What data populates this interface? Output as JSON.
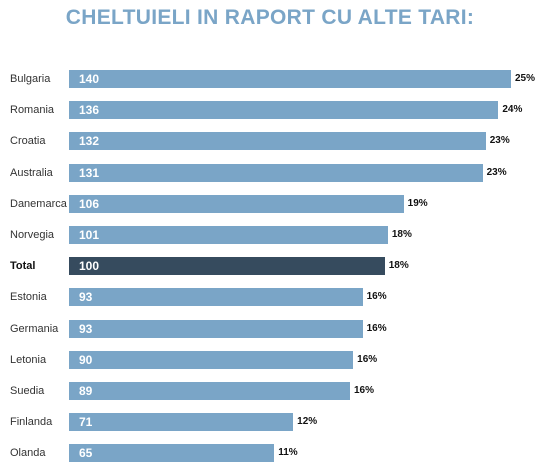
{
  "chart_data": {
    "type": "bar",
    "orientation": "horizontal",
    "title": "CHELTUIELI IN RAPORT CU ALTE TARI:",
    "xlim": [
      0,
      140
    ],
    "grid": false,
    "categories": [
      "Bulgaria",
      "Romania",
      "Croatia",
      "Australia",
      "Danemarca",
      "Norvegia",
      "Total",
      "Estonia",
      "Germania",
      "Letonia",
      "Suedia",
      "Finlanda",
      "Olanda"
    ],
    "values": [
      140,
      136,
      132,
      131,
      106,
      101,
      100,
      93,
      93,
      90,
      89,
      71,
      65
    ],
    "value_labels": [
      "140",
      "136",
      "132",
      "131",
      "106",
      "101",
      "100",
      "93",
      "93",
      "90",
      "89",
      "71",
      "65"
    ],
    "percent_labels": [
      "25%",
      "24%",
      "23%",
      "23%",
      "19%",
      "18%",
      "18%",
      "16%",
      "16%",
      "16%",
      "16%",
      "12%",
      "11%"
    ],
    "highlight_category": "Total",
    "colors": {
      "bar": "#7aa5c7",
      "highlight": "#364b5e",
      "title": "#7aa5c7"
    }
  }
}
